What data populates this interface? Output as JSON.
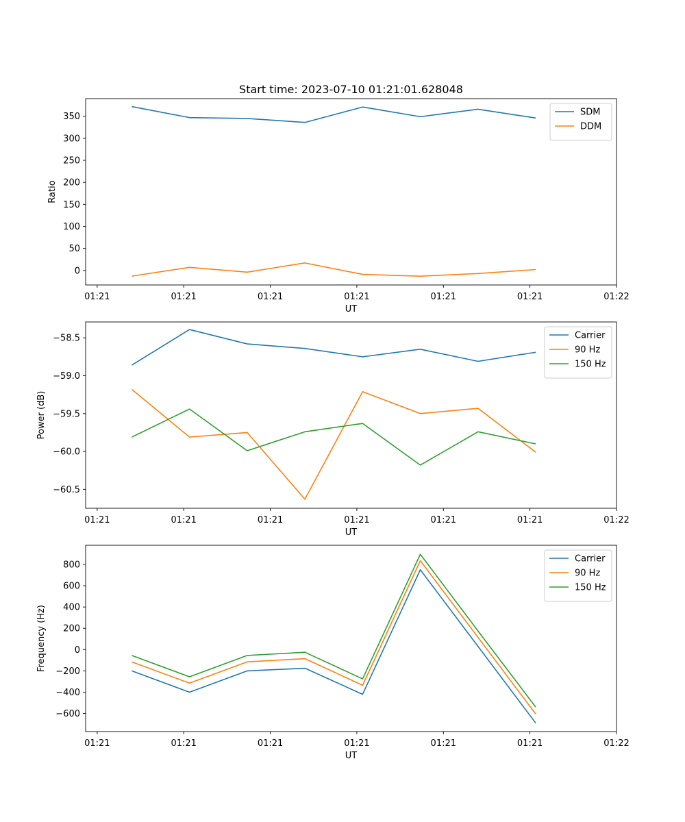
{
  "chart_data": [
    {
      "type": "line",
      "title": "Start time: 2023-07-10 01:21:01.628048",
      "xlabel": "UT",
      "ylabel": "Ratio",
      "x": [
        1,
        2,
        3,
        4,
        5,
        6,
        7,
        8
      ],
      "xlim": [
        0.2,
        9.4
      ],
      "x_ticks": [
        0.4,
        1.9,
        3.4,
        4.9,
        6.4,
        7.9,
        9.4
      ],
      "x_tick_labels": [
        "01:21",
        "01:21",
        "01:21",
        "01:21",
        "01:21",
        "01:21",
        "01:22"
      ],
      "ylim": [
        -33,
        390
      ],
      "y_ticks": [
        0,
        50,
        100,
        150,
        200,
        250,
        300,
        350
      ],
      "y_tick_labels": [
        "0",
        "50",
        "100",
        "150",
        "200",
        "250",
        "300",
        "350"
      ],
      "legend_position": "top-right",
      "series": [
        {
          "name": "SDM",
          "color": "#1f77b4",
          "values": [
            372,
            347,
            345,
            336,
            371,
            349,
            366,
            346
          ]
        },
        {
          "name": "DDM",
          "color": "#ff7f0e",
          "values": [
            -13,
            7,
            -4,
            17,
            -9,
            -13,
            -7,
            2
          ]
        }
      ]
    },
    {
      "type": "line",
      "title": "",
      "xlabel": "UT",
      "ylabel": "Power (dB)",
      "x": [
        1,
        2,
        3,
        4,
        5,
        6,
        7,
        8
      ],
      "xlim": [
        0.2,
        9.4
      ],
      "x_ticks": [
        0.4,
        1.9,
        3.4,
        4.9,
        6.4,
        7.9,
        9.4
      ],
      "x_tick_labels": [
        "01:21",
        "01:21",
        "01:21",
        "01:21",
        "01:21",
        "01:21",
        "01:22"
      ],
      "ylim": [
        -60.75,
        -58.29
      ],
      "y_ticks": [
        -58.5,
        -59.0,
        -59.5,
        -60.0,
        -60.5
      ],
      "y_tick_labels": [
        "−58.5",
        "−59.0",
        "−59.5",
        "−60.0",
        "−60.5"
      ],
      "legend_position": "top-right",
      "series": [
        {
          "name": "Carrier",
          "color": "#1f77b4",
          "values": [
            -58.86,
            -58.39,
            -58.58,
            -58.64,
            -58.75,
            -58.65,
            -58.81,
            -58.69
          ]
        },
        {
          "name": "90 Hz",
          "color": "#ff7f0e",
          "values": [
            -59.18,
            -59.81,
            -59.75,
            -60.63,
            -59.21,
            -59.5,
            -59.43,
            -60.01
          ]
        },
        {
          "name": "150 Hz",
          "color": "#2ca02c",
          "values": [
            -59.81,
            -59.44,
            -59.99,
            -59.74,
            -59.63,
            -60.18,
            -59.74,
            -59.9
          ]
        }
      ]
    },
    {
      "type": "line",
      "title": "",
      "xlabel": "UT",
      "ylabel": "Frequency (Hz)",
      "x": [
        1,
        2,
        3,
        4,
        5,
        6,
        7,
        8
      ],
      "xlim": [
        0.2,
        9.4
      ],
      "x_ticks": [
        0.4,
        1.9,
        3.4,
        4.9,
        6.4,
        7.9,
        9.4
      ],
      "x_tick_labels": [
        "01:21",
        "01:21",
        "01:21",
        "01:21",
        "01:21",
        "01:21",
        "01:22"
      ],
      "ylim": [
        -770,
        980
      ],
      "y_ticks": [
        -600,
        -400,
        -200,
        0,
        200,
        400,
        600,
        800
      ],
      "y_tick_labels": [
        "−600",
        "−400",
        "−200",
        "0",
        "200",
        "400",
        "600",
        "800"
      ],
      "legend_position": "top-right",
      "series": [
        {
          "name": "Carrier",
          "color": "#1f77b4",
          "values": [
            -200,
            -400,
            -200,
            -175,
            -420,
            750,
            30,
            -690
          ]
        },
        {
          "name": "90 Hz",
          "color": "#ff7f0e",
          "values": [
            -115,
            -315,
            -115,
            -85,
            -335,
            835,
            115,
            -605
          ]
        },
        {
          "name": "150 Hz",
          "color": "#2ca02c",
          "values": [
            -55,
            -255,
            -55,
            -25,
            -275,
            895,
            175,
            -540
          ]
        }
      ]
    }
  ]
}
